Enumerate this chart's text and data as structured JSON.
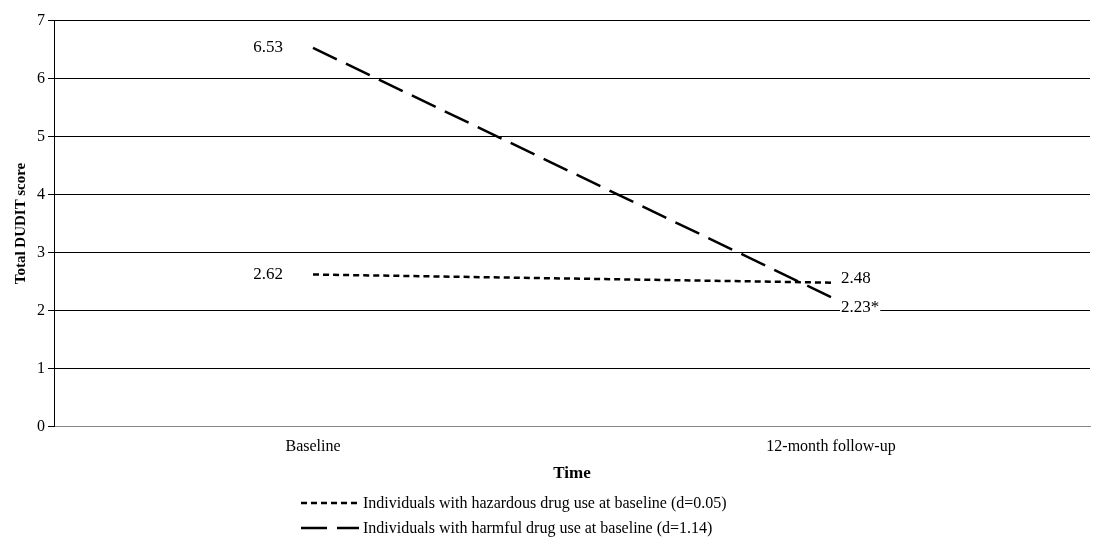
{
  "chart_data": {
    "type": "line",
    "xlabel": "Time",
    "ylabel": "Total DUDIT score",
    "categories": [
      "Baseline",
      "12-month follow-up"
    ],
    "series": [
      {
        "name": "Individuals with hazardous drug use at baseline (d=0.05)",
        "color": "#000000",
        "line_style": "dotted",
        "values": [
          2.62,
          2.48
        ],
        "value_labels": [
          "2.62",
          "2.48"
        ]
      },
      {
        "name": "Individuals with harmful drug use at baseline (d=1.14)",
        "color": "#000000",
        "line_style": "dashed",
        "values": [
          6.53,
          2.23
        ],
        "value_labels": [
          "6.53",
          "2.23*"
        ]
      }
    ],
    "ylim": [
      0,
      7
    ],
    "yticks": [
      0,
      1,
      2,
      3,
      4,
      5,
      6,
      7
    ],
    "grid": "y",
    "legend": "bottom",
    "marker": "none"
  }
}
